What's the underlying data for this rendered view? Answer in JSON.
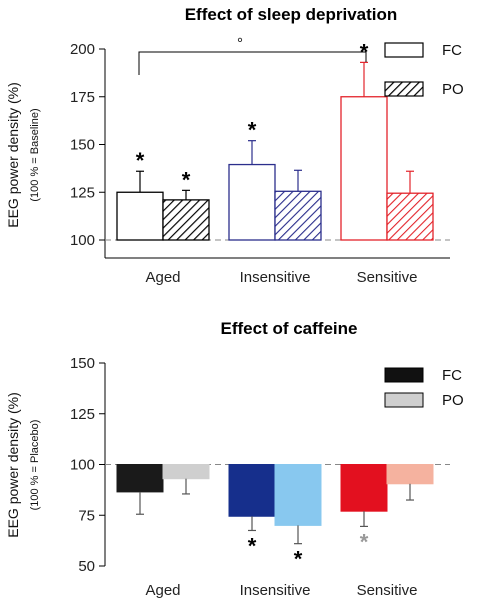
{
  "chart_data": [
    {
      "type": "bar",
      "title": "Effect of sleep deprivation",
      "ylabel": "EEG power density (%)",
      "ylabel_sub": "(100 % = Baseline)",
      "categories": [
        "Aged",
        "Insensitive",
        "Sensitive"
      ],
      "ylim": [
        100,
        200
      ],
      "yticks": [
        100,
        125,
        150,
        175,
        200
      ],
      "baseline": 100,
      "series": [
        {
          "name": "FC",
          "values": [
            125,
            139.5,
            175
          ],
          "errors": [
            11,
            12.5,
            18
          ],
          "style": "outline"
        },
        {
          "name": "PO",
          "values": [
            121,
            125.5,
            124.5
          ],
          "errors": [
            5,
            11,
            11.5
          ],
          "style": "hatched"
        }
      ],
      "colors": [
        "#000000",
        "#2b2e8c",
        "#e3242b"
      ],
      "significance": [
        {
          "series": 0,
          "category": 0,
          "label": "*"
        },
        {
          "series": 1,
          "category": 0,
          "label": "*"
        },
        {
          "series": 0,
          "category": 1,
          "label": "*"
        },
        {
          "series": 0,
          "category": 2,
          "label": "*"
        }
      ],
      "bracket": {
        "from_category": 0,
        "to_category": 2,
        "label": "°"
      },
      "legend_position": "top-right"
    },
    {
      "type": "bar",
      "title": "Effect of caffeine",
      "ylabel": "EEG power density (%)",
      "ylabel_sub": "(100 % = Placebo)",
      "categories": [
        "Aged",
        "Insensitive",
        "Sensitive"
      ],
      "ylim": [
        50,
        150
      ],
      "yticks": [
        50,
        75,
        100,
        125,
        150
      ],
      "baseline": 100,
      "series": [
        {
          "name": "FC",
          "values": [
            86.5,
            74.5,
            77
          ],
          "errors": [
            11,
            7,
            7.5
          ],
          "style": "solid-dark"
        },
        {
          "name": "PO",
          "values": [
            93,
            70,
            90.5
          ],
          "errors": [
            7.5,
            9,
            8
          ],
          "style": "solid-light"
        }
      ],
      "colors_fc": [
        "#1a1a1a",
        "#162f8c",
        "#e3101f"
      ],
      "colors_po": [
        "#cfcfcf",
        "#88c8ef",
        "#f5b29f"
      ],
      "significance": [
        {
          "series": 0,
          "category": 1,
          "label": "*",
          "color": "#000000"
        },
        {
          "series": 1,
          "category": 1,
          "label": "*",
          "color": "#000000"
        },
        {
          "series": 0,
          "category": 2,
          "label": "*",
          "color": "#999999"
        }
      ],
      "legend_position": "top-right"
    }
  ]
}
